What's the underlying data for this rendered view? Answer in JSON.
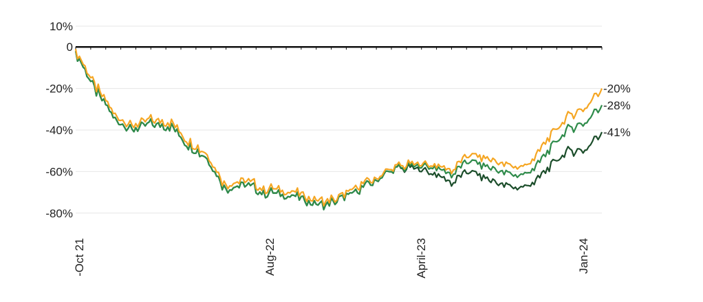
{
  "chart_data": {
    "type": "line",
    "title": "",
    "xlabel": "",
    "ylabel": "",
    "ylim": [
      -90,
      10
    ],
    "x_ticks": [
      "-Oct 21",
      "Aug-22",
      "April-23",
      "Jan-24"
    ],
    "y_ticks": [
      {
        "value": 10,
        "label": "10%"
      },
      {
        "value": 0,
        "label": "0"
      },
      {
        "value": -20,
        "label": "-20%"
      },
      {
        "value": -40,
        "label": "-40%"
      },
      {
        "value": -60,
        "label": "-60%"
      },
      {
        "value": -80,
        "label": "-80%"
      }
    ],
    "grid": true,
    "legend": "none",
    "colors": [
      "#F5A623",
      "#2E8B4A",
      "#1B4D2A"
    ],
    "x": [
      "2021-10",
      "2021-11",
      "2021-12",
      "2022-01",
      "2022-02",
      "2022-03",
      "2022-04",
      "2022-05",
      "2022-06",
      "2022-07",
      "2022-08",
      "2022-09",
      "2022-10",
      "2022-11",
      "2022-12",
      "2023-01",
      "2023-02",
      "2023-03",
      "2023-04",
      "2023-05",
      "2023-06",
      "2023-07",
      "2023-08",
      "2023-09",
      "2023-10",
      "2023-11",
      "2023-12",
      "2024-01",
      "2024-02"
    ],
    "series": [
      {
        "end_label": "-20%",
        "color": "#F5A623",
        "values": [
          -2,
          -18,
          -32,
          -38,
          -35,
          -36,
          -45,
          -52,
          -67,
          -64,
          -68,
          -69,
          -71,
          -74,
          -73,
          -67,
          -63,
          -58,
          -56,
          -57,
          -59,
          -52,
          -54,
          -57,
          -58,
          -46,
          -35,
          -30,
          -20
        ]
      },
      {
        "end_label": "-28%",
        "color": "#2E8B4A",
        "values": [
          -3,
          -20,
          -34,
          -40,
          -37,
          -38,
          -47,
          -54,
          -69,
          -66,
          -70,
          -71,
          -73,
          -76,
          -74,
          -69,
          -64,
          -59,
          -57,
          -58,
          -61,
          -55,
          -58,
          -61,
          -62,
          -52,
          -41,
          -37,
          -28
        ]
      },
      {
        "end_label": "-41%",
        "color": "#1B4D2A",
        "values": [
          -3,
          -20,
          -34,
          -40,
          -37,
          -38,
          -47,
          -54,
          -69,
          -66,
          -70,
          -71,
          -73,
          -76,
          -74,
          -69,
          -64,
          -59,
          -58,
          -61,
          -65,
          -60,
          -64,
          -67,
          -68,
          -60,
          -51,
          -50,
          -41
        ]
      }
    ]
  }
}
